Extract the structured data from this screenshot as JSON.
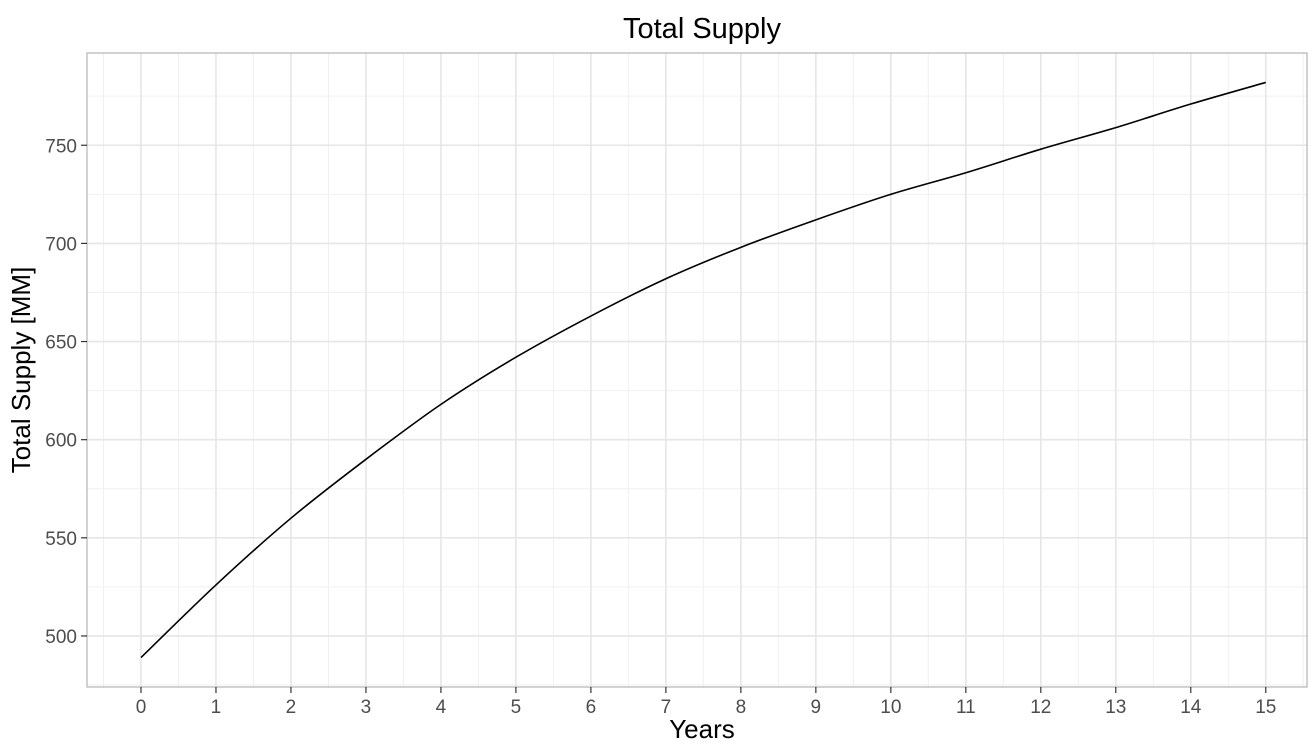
{
  "chart_data": {
    "type": "line",
    "title": "Total Supply",
    "xlabel": "Years",
    "ylabel": "Total Supply [MM]",
    "xlim": [
      -0.72,
      15.55
    ],
    "ylim": [
      474,
      797
    ],
    "x_ticks": [
      0,
      1,
      2,
      3,
      4,
      5,
      6,
      7,
      8,
      9,
      10,
      11,
      12,
      13,
      14,
      15
    ],
    "y_ticks": [
      500,
      550,
      600,
      650,
      700,
      750
    ],
    "grid": true,
    "legend": "none",
    "series": [
      {
        "color": "#000000",
        "x": [
          0,
          1,
          2,
          3,
          4,
          5,
          6,
          7,
          8,
          9,
          10,
          11,
          12,
          13,
          14,
          15
        ],
        "y": [
          489,
          526,
          560,
          590,
          618,
          642,
          663,
          682,
          698,
          712,
          725,
          736,
          748,
          759,
          771,
          782
        ]
      }
    ]
  }
}
